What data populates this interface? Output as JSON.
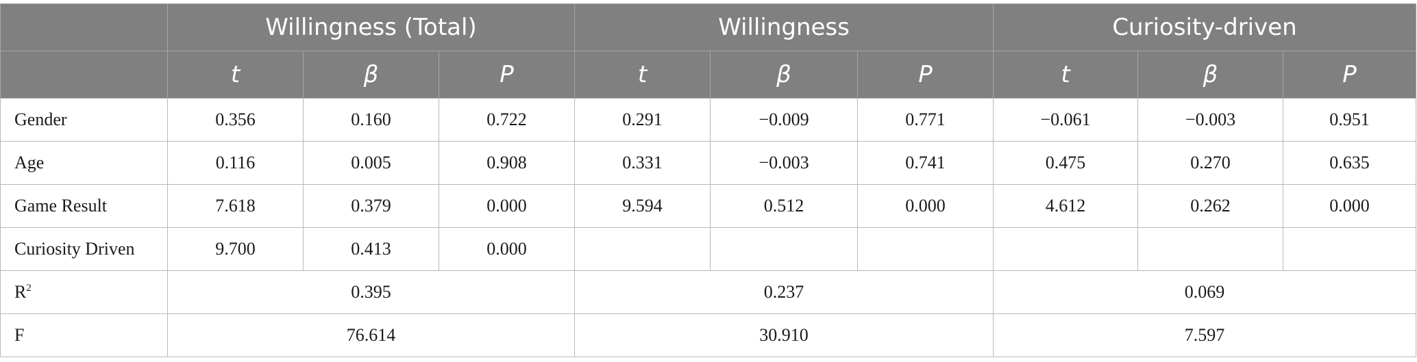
{
  "groups": [
    "Willingness (Total)",
    "Willingness",
    "Curiosity-driven"
  ],
  "subheaders": [
    "t",
    "β",
    "P"
  ],
  "rows": [
    {
      "label": "Gender",
      "values": [
        "0.356",
        "0.160",
        "0.722",
        "0.291",
        "−0.009",
        "0.771",
        "−0.061",
        "−0.003",
        "0.951"
      ]
    },
    {
      "label": "Age",
      "values": [
        "0.116",
        "0.005",
        "0.908",
        "0.331",
        "−0.003",
        "0.741",
        "0.475",
        "0.270",
        "0.635"
      ]
    },
    {
      "label": "Game Result",
      "values": [
        "7.618",
        "0.379",
        "0.000",
        "9.594",
        "0.512",
        "0.000",
        "4.612",
        "0.262",
        "0.000"
      ]
    },
    {
      "label": "Curiosity Driven",
      "values": [
        "9.700",
        "0.413",
        "0.000",
        "",
        "",
        "",
        "",
        "",
        ""
      ]
    }
  ],
  "r2": {
    "label": "R",
    "sup": "2",
    "values": [
      "0.395",
      "0.237",
      "0.069"
    ]
  },
  "f": {
    "label": "F",
    "values": [
      "76.614",
      "30.910",
      "7.597"
    ]
  }
}
